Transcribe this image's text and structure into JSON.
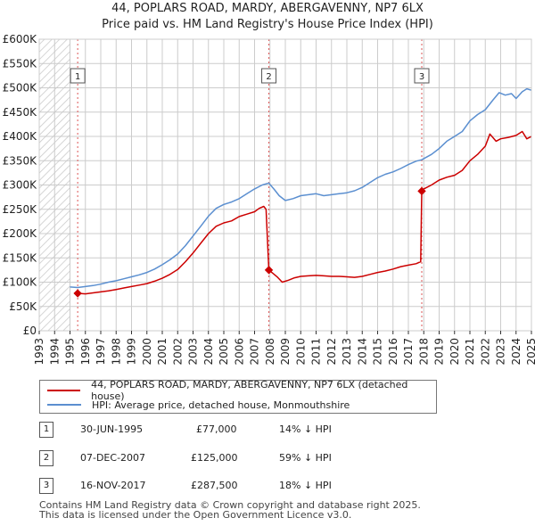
{
  "chart_data": {
    "type": "line",
    "title": "44, POPLARS ROAD, MARDY, ABERGAVENNY, NP7 6LX",
    "subtitle": "Price paid vs. HM Land Registry's House Price Index (HPI)",
    "xlim": [
      1993,
      2025
    ],
    "ylim": [
      0,
      600000
    ],
    "x_ticks": [
      "1993",
      "1994",
      "1995",
      "1996",
      "1997",
      "1998",
      "1999",
      "2000",
      "2001",
      "2002",
      "2003",
      "2004",
      "2005",
      "2006",
      "2007",
      "2008",
      "2009",
      "2010",
      "2011",
      "2012",
      "2013",
      "2014",
      "2015",
      "2016",
      "2017",
      "2018",
      "2019",
      "2020",
      "2021",
      "2022",
      "2023",
      "2024",
      "2025"
    ],
    "y_ticks": [
      {
        "value": 0,
        "label": "£0"
      },
      {
        "value": 50000,
        "label": "£50K"
      },
      {
        "value": 100000,
        "label": "£100K"
      },
      {
        "value": 150000,
        "label": "£150K"
      },
      {
        "value": 200000,
        "label": "£200K"
      },
      {
        "value": 250000,
        "label": "£250K"
      },
      {
        "value": 300000,
        "label": "£300K"
      },
      {
        "value": 350000,
        "label": "£350K"
      },
      {
        "value": 400000,
        "label": "£400K"
      },
      {
        "value": 450000,
        "label": "£450K"
      },
      {
        "value": 500000,
        "label": "£500K"
      },
      {
        "value": 550000,
        "label": "£550K"
      },
      {
        "value": 600000,
        "label": "£600K"
      }
    ],
    "hatch_until": 1995.0,
    "series": [
      {
        "name": "44, POPLARS ROAD, MARDY, ABERGAVENNY, NP7 6LX (detached house)",
        "color": "#cc0000",
        "x": [
          1995.5,
          1996,
          1996.5,
          1997,
          1997.5,
          1998,
          1998.5,
          1999,
          1999.5,
          2000,
          2000.5,
          2001,
          2001.5,
          2002,
          2002.5,
          2003,
          2003.5,
          2004,
          2004.5,
          2005,
          2005.5,
          2006,
          2006.5,
          2007,
          2007.3,
          2007.6,
          2007.75,
          2007.93,
          2008.2,
          2008.5,
          2008.8,
          2009.2,
          2009.6,
          2010,
          2010.5,
          2011,
          2011.5,
          2012,
          2012.5,
          2013,
          2013.5,
          2014,
          2014.5,
          2015,
          2015.5,
          2016,
          2016.5,
          2017,
          2017.5,
          2017.8,
          2017.87,
          2018,
          2018.5,
          2019,
          2019.5,
          2020,
          2020.5,
          2021,
          2021.5,
          2022,
          2022.3,
          2022.7,
          2023,
          2023.5,
          2024,
          2024.4,
          2024.7,
          2025
        ],
        "y": [
          77000,
          76000,
          78000,
          80000,
          82000,
          85000,
          88000,
          91000,
          94000,
          97000,
          102000,
          108000,
          116000,
          126000,
          142000,
          160000,
          180000,
          200000,
          215000,
          222000,
          226000,
          235000,
          240000,
          245000,
          252000,
          256000,
          250000,
          125000,
          118000,
          110000,
          100000,
          104000,
          109000,
          112000,
          113000,
          114000,
          113000,
          112000,
          112000,
          111000,
          110000,
          112000,
          116000,
          120000,
          123000,
          127000,
          132000,
          135000,
          138000,
          142000,
          287500,
          292000,
          300000,
          310000,
          316000,
          320000,
          330000,
          350000,
          363000,
          380000,
          405000,
          390000,
          395000,
          398000,
          402000,
          410000,
          395000,
          400000
        ]
      },
      {
        "name": "HPI: Average price, detached house, Monmouthshire",
        "color": "#5b8fd0",
        "x": [
          1995,
          1995.5,
          1996,
          1996.5,
          1997,
          1997.5,
          1998,
          1998.5,
          1999,
          1999.5,
          2000,
          2000.5,
          2001,
          2001.5,
          2002,
          2002.5,
          2003,
          2003.5,
          2004,
          2004.5,
          2005,
          2005.5,
          2006,
          2006.5,
          2007,
          2007.5,
          2007.93,
          2008.3,
          2008.6,
          2009,
          2009.5,
          2010,
          2010.5,
          2011,
          2011.5,
          2012,
          2012.5,
          2013,
          2013.5,
          2014,
          2014.5,
          2015,
          2015.5,
          2016,
          2016.5,
          2017,
          2017.5,
          2017.87,
          2018.5,
          2019,
          2019.5,
          2020,
          2020.5,
          2021,
          2021.5,
          2022,
          2022.5,
          2022.9,
          2023.3,
          2023.7,
          2024,
          2024.4,
          2024.7,
          2025
        ],
        "y": [
          90000,
          89000,
          91000,
          93000,
          96000,
          100000,
          103000,
          107000,
          111000,
          115000,
          120000,
          127000,
          136000,
          146000,
          158000,
          175000,
          195000,
          215000,
          236000,
          252000,
          260000,
          265000,
          272000,
          282000,
          292000,
          300000,
          304000,
          290000,
          278000,
          268000,
          272000,
          278000,
          280000,
          282000,
          278000,
          280000,
          282000,
          284000,
          288000,
          295000,
          305000,
          315000,
          322000,
          327000,
          334000,
          342000,
          349000,
          352000,
          363000,
          375000,
          390000,
          400000,
          410000,
          432000,
          445000,
          455000,
          475000,
          490000,
          485000,
          488000,
          478000,
          492000,
          498000,
          495000
        ]
      }
    ],
    "sales": [
      {
        "label": "1",
        "x": 1995.5,
        "y": 77000
      },
      {
        "label": "2",
        "x": 2007.93,
        "y": 125000
      },
      {
        "label": "3",
        "x": 2017.87,
        "y": 287500
      }
    ]
  },
  "legend": {
    "items": [
      {
        "label": "44, POPLARS ROAD, MARDY, ABERGAVENNY, NP7 6LX (detached house)",
        "color": "#cc0000"
      },
      {
        "label": "HPI: Average price, detached house, Monmouthshire",
        "color": "#5b8fd0"
      }
    ]
  },
  "transactions": [
    {
      "num": "1",
      "date": "30-JUN-1995",
      "price": "£77,000",
      "hpi": "14% ↓ HPI"
    },
    {
      "num": "2",
      "date": "07-DEC-2007",
      "price": "£125,000",
      "hpi": "59% ↓ HPI"
    },
    {
      "num": "3",
      "date": "16-NOV-2017",
      "price": "£287,500",
      "hpi": "18% ↓ HPI"
    }
  ],
  "footer": {
    "line1": "Contains HM Land Registry data © Crown copyright and database right 2025.",
    "line2": "This data is licensed under the Open Government Licence v3.0."
  }
}
